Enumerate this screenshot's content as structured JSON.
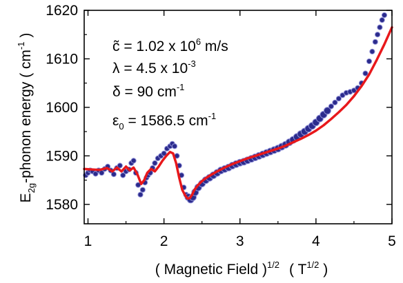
{
  "chart_data": {
    "type": "scatter",
    "xlabel": {
      "main": "( Magnetic Field )",
      "main_sup": "1/2",
      "unit": "( T",
      "unit_sup": "1/2",
      "unit_close": " )"
    },
    "ylabel": {
      "pre": "E",
      "sub": "2g",
      "main": "-phonon energy  ( cm",
      "sup": "-1",
      "close": " )"
    },
    "xlim": [
      0.95,
      5.0
    ],
    "ylim": [
      1576,
      1620
    ],
    "xticks": [
      "1",
      "2",
      "3",
      "4",
      "5"
    ],
    "yticks": [
      "1580",
      "1590",
      "1600",
      "1610",
      "1620"
    ],
    "xtick_values": [
      1,
      2,
      3,
      4,
      5
    ],
    "ytick_values": [
      1580,
      1590,
      1600,
      1610,
      1620
    ],
    "annotations": [
      {
        "pre": "c̃ = 1.02 x 10",
        "sup": "6",
        "post": " m/s"
      },
      {
        "pre": "λ = 4.5 x 10",
        "sup": "-3",
        "post": ""
      },
      {
        "pre": "δ = 90 cm",
        "sup": "-1",
        "post": ""
      },
      {
        "pre": "ε",
        "sub": "0",
        "post": " = 1586.5 cm",
        "sup": "-1"
      }
    ],
    "series": [
      {
        "style": "markers",
        "color": "#2b2b8c",
        "x": [
          0.97,
          1.0,
          1.03,
          1.06,
          1.1,
          1.14,
          1.18,
          1.22,
          1.26,
          1.3,
          1.34,
          1.38,
          1.42,
          1.46,
          1.5,
          1.54,
          1.57,
          1.6,
          1.63,
          1.66,
          1.69,
          1.72,
          1.75,
          1.77,
          1.79,
          1.82,
          1.85,
          1.88,
          1.92,
          1.96,
          2.0,
          2.04,
          2.08,
          2.11,
          2.14,
          2.17,
          2.2,
          2.23,
          2.26,
          2.29,
          2.32,
          2.35,
          2.38,
          2.41,
          2.45,
          2.5,
          2.55,
          2.6,
          2.65,
          2.7,
          2.75,
          2.8,
          2.85,
          2.9,
          2.95,
          3.0,
          3.05,
          3.1,
          3.15,
          3.2,
          3.25,
          3.3,
          3.35,
          3.4,
          3.45,
          3.5,
          3.55,
          3.6,
          3.65,
          3.7,
          3.75,
          3.8,
          3.85,
          3.9,
          3.95,
          4.0,
          4.05,
          4.1,
          4.15,
          4.2,
          4.25,
          4.3,
          4.35,
          4.4,
          4.45,
          4.5,
          4.55,
          4.6,
          4.65,
          4.7,
          4.74,
          4.78,
          4.81,
          4.84,
          4.87,
          4.9
        ],
        "y": [
          1586.0,
          1586.5,
          1587.0,
          1586.8,
          1586.3,
          1587.0,
          1586.5,
          1587.3,
          1587.8,
          1587.0,
          1586.2,
          1587.5,
          1588.0,
          1586.0,
          1586.8,
          1587.2,
          1588.5,
          1589.0,
          1586.5,
          1584.0,
          1582.0,
          1583.0,
          1584.5,
          1585.5,
          1586.0,
          1586.5,
          1587.5,
          1588.5,
          1589.5,
          1590.0,
          1590.5,
          1591.5,
          1592.0,
          1592.5,
          1592.0,
          1590.0,
          1588.0,
          1586.0,
          1583.5,
          1582.0,
          1581.5,
          1581.0,
          1581.5,
          1582.5,
          1583.5,
          1584.3,
          1585.0,
          1585.5,
          1586.0,
          1586.5,
          1587.0,
          1587.3,
          1587.6,
          1588.0,
          1588.3,
          1588.6,
          1588.8,
          1589.1,
          1589.4,
          1589.7,
          1590.0,
          1590.3,
          1590.6,
          1590.9,
          1591.2,
          1591.5,
          1591.9,
          1592.3,
          1592.8,
          1593.3,
          1593.9,
          1594.5,
          1595.0,
          1595.6,
          1596.2,
          1596.9,
          1597.7,
          1598.5,
          1599.3,
          1600.2,
          1601.0,
          1601.8,
          1602.5,
          1603.0,
          1603.2,
          1603.5,
          1604.0,
          1605.0,
          1607.0,
          1609.5,
          1611.5,
          1613.5,
          1615.0,
          1616.5,
          1618.0,
          1619.0
        ]
      },
      {
        "style": "line",
        "color": "#e8181b",
        "x": [
          0.95,
          1.05,
          1.15,
          1.25,
          1.32,
          1.38,
          1.44,
          1.5,
          1.55,
          1.6,
          1.65,
          1.7,
          1.74,
          1.78,
          1.83,
          1.88,
          1.93,
          1.98,
          2.03,
          2.08,
          2.12,
          2.16,
          2.2,
          2.24,
          2.28,
          2.31,
          2.34,
          2.37,
          2.4,
          2.45,
          2.5,
          2.55,
          2.6,
          2.7,
          2.8,
          2.9,
          3.0,
          3.1,
          3.2,
          3.3,
          3.4,
          3.5,
          3.6,
          3.7,
          3.8,
          3.9,
          4.0,
          4.1,
          4.2,
          4.3,
          4.4,
          4.5,
          4.6,
          4.7,
          4.8,
          4.9,
          5.0
        ],
        "y": [
          1587.3,
          1587.2,
          1587.1,
          1587.5,
          1586.8,
          1587.6,
          1586.8,
          1587.8,
          1587.0,
          1587.6,
          1586.2,
          1584.2,
          1585.0,
          1586.5,
          1587.3,
          1586.8,
          1587.8,
          1589.0,
          1590.0,
          1590.8,
          1590.5,
          1588.5,
          1585.5,
          1583.0,
          1581.8,
          1581.2,
          1581.3,
          1582.0,
          1583.0,
          1584.0,
          1584.8,
          1585.4,
          1585.9,
          1586.8,
          1587.6,
          1588.3,
          1588.9,
          1589.5,
          1590.0,
          1590.5,
          1591.0,
          1591.5,
          1592.1,
          1592.8,
          1593.5,
          1594.3,
          1595.2,
          1596.3,
          1597.6,
          1599.0,
          1600.5,
          1602.3,
          1604.4,
          1606.8,
          1609.8,
          1613.0,
          1616.5
        ]
      }
    ]
  }
}
